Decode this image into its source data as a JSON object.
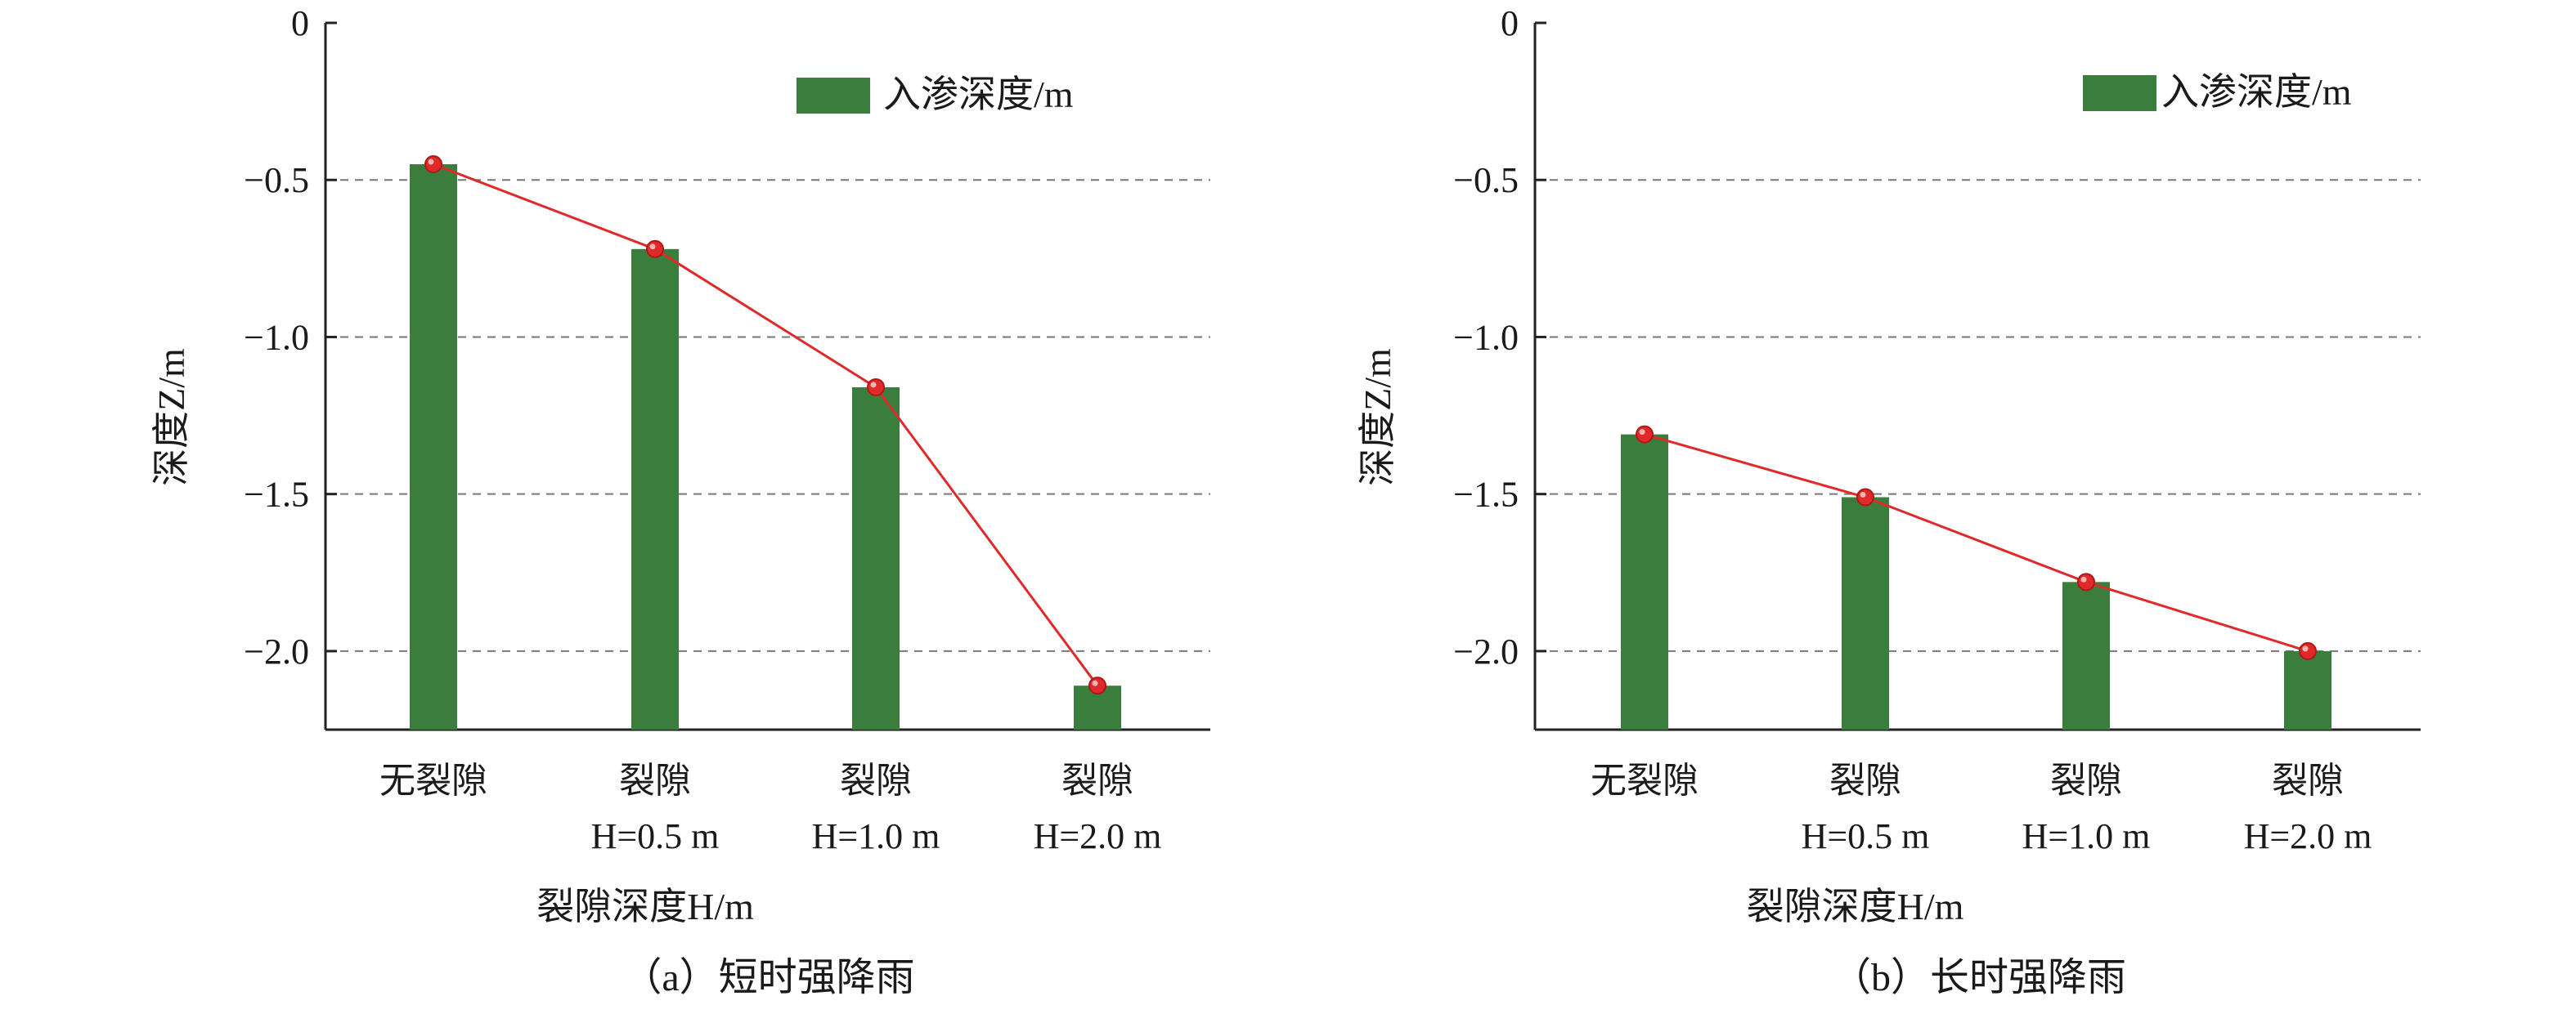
{
  "chart_data": [
    {
      "type": "bar",
      "caption": "（a）短时强降雨",
      "categories": [
        [
          "无裂隙"
        ],
        [
          "裂隙",
          "H=0.5 m"
        ],
        [
          "裂隙",
          "H=1.0 m"
        ],
        [
          "裂隙",
          "H=2.0 m"
        ]
      ],
      "series": [
        {
          "name": "入渗深度/m",
          "values": [
            -0.45,
            -0.72,
            -1.16,
            -2.11
          ],
          "color": "#3b7d3d",
          "kind": "bar"
        },
        {
          "values": [
            -0.45,
            -0.72,
            -1.16,
            -2.11
          ],
          "color": "#e02a2a",
          "kind": "line-with-markers"
        }
      ],
      "xlabel": "裂隙深度H/m",
      "ylabel": "深度Z/m",
      "ylim": [
        -2.25,
        0
      ],
      "yticks": [
        "0",
        "−0.5",
        "−1.0",
        "−1.5",
        "−2.0"
      ],
      "ytick_values": [
        0,
        -0.5,
        -1.0,
        -1.5,
        -2.0
      ],
      "grid": "horizontal-dashed",
      "legend": "top-right"
    },
    {
      "type": "bar",
      "caption": "（b）长时强降雨",
      "categories": [
        [
          "无裂隙"
        ],
        [
          "裂隙",
          "H=0.5 m"
        ],
        [
          "裂隙",
          "H=1.0 m"
        ],
        [
          "裂隙",
          "H=2.0 m"
        ]
      ],
      "series": [
        {
          "name": "入渗深度/m",
          "values": [
            -1.31,
            -1.51,
            -1.78,
            -2.0
          ],
          "color": "#3b7d3d",
          "kind": "bar"
        },
        {
          "values": [
            -1.31,
            -1.51,
            -1.78,
            -2.0
          ],
          "color": "#e02a2a",
          "kind": "line-with-markers"
        }
      ],
      "xlabel": "裂隙深度H/m",
      "ylabel": "深度Z/m",
      "ylim": [
        -2.25,
        0
      ],
      "yticks": [
        "0",
        "−0.5",
        "−1.0",
        "−1.5",
        "−2.0"
      ],
      "ytick_values": [
        0,
        -0.5,
        -1.0,
        -1.5,
        -2.0
      ],
      "grid": "horizontal-dashed",
      "legend": "top-right"
    }
  ]
}
